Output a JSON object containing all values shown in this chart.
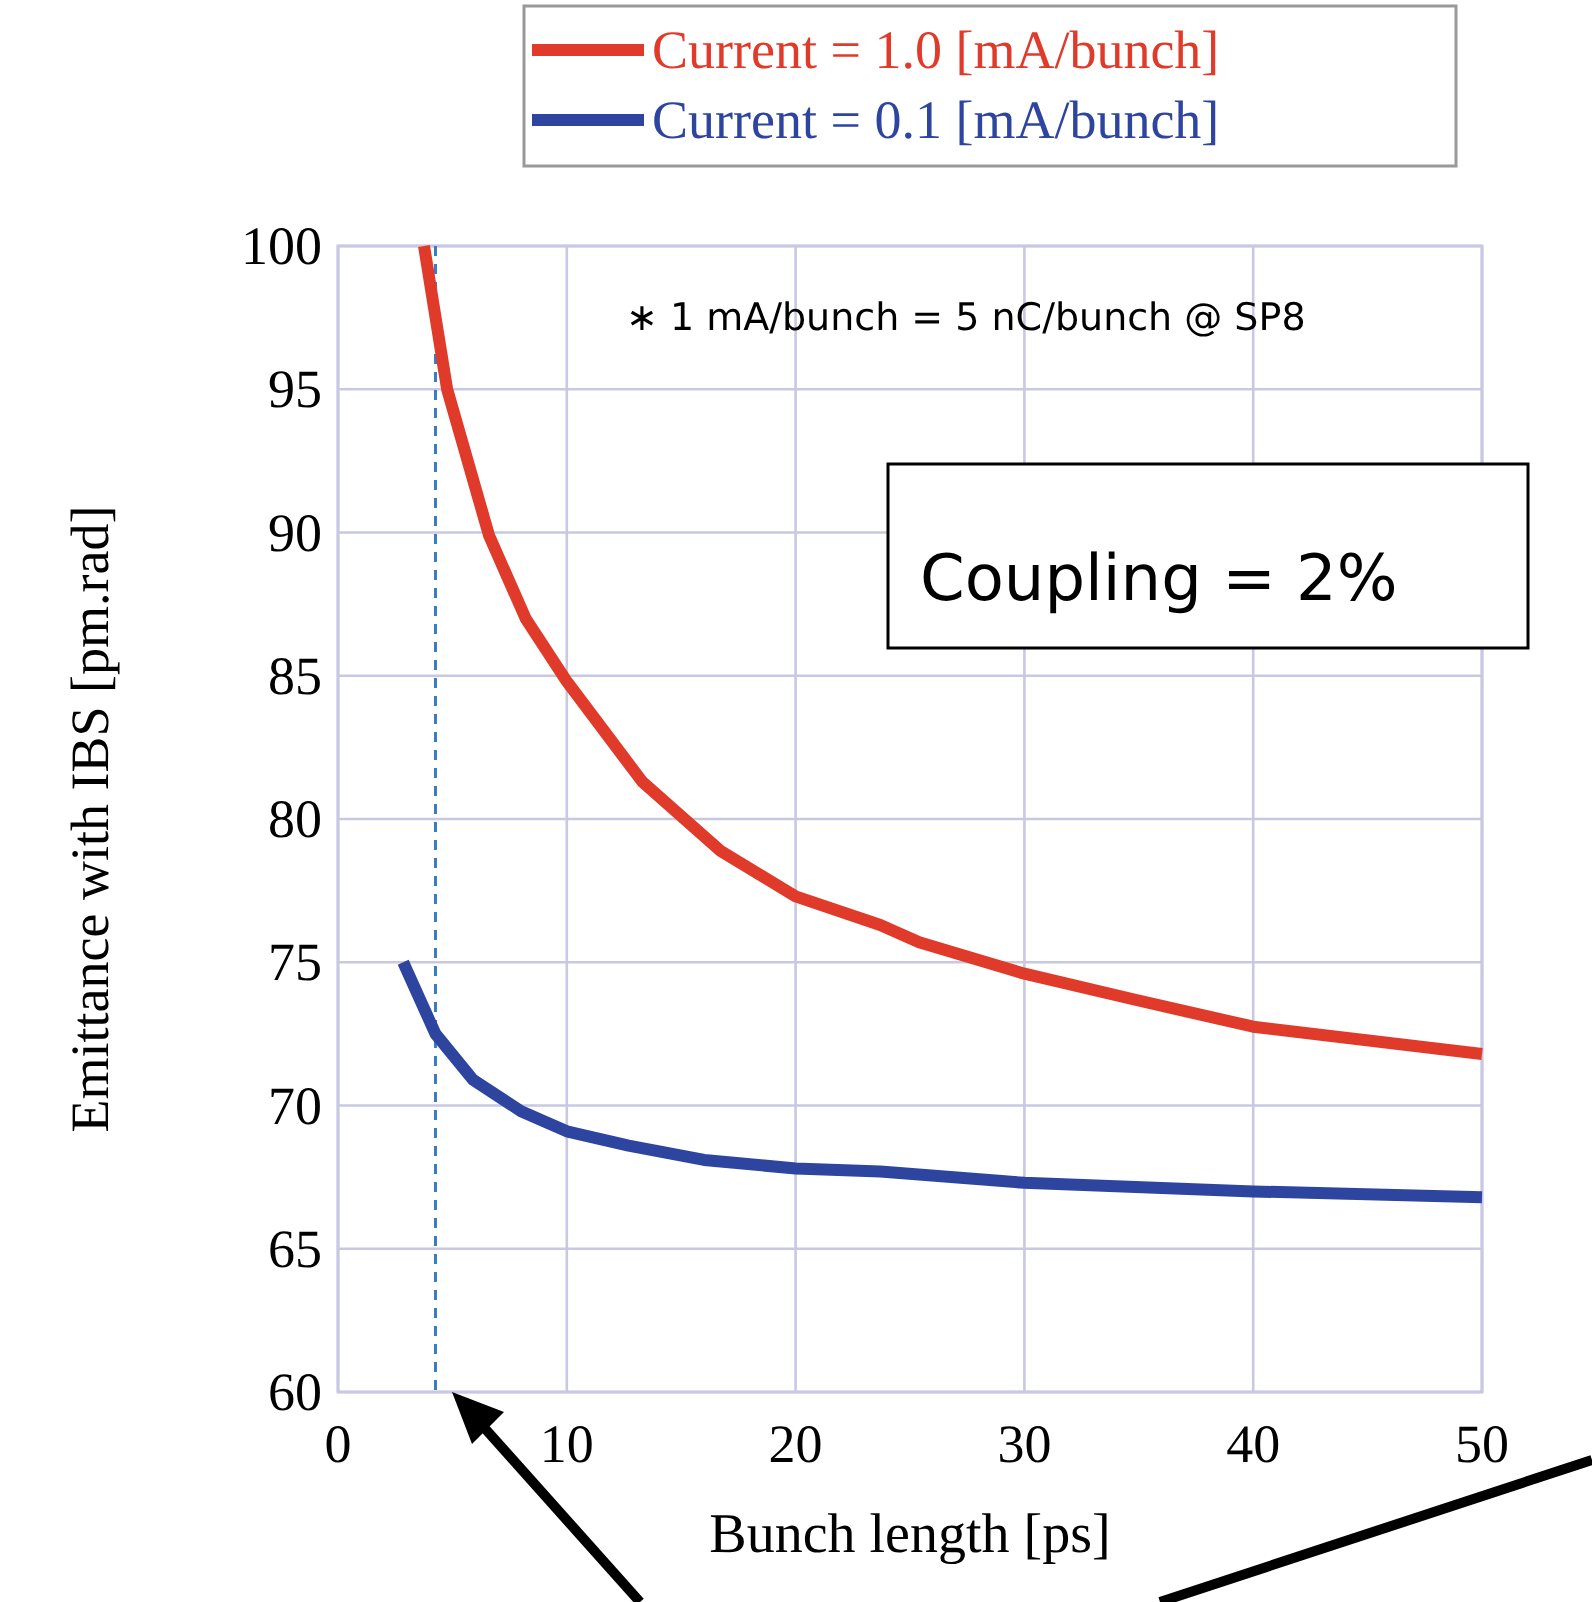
{
  "chart_data": {
    "type": "line",
    "xlabel": "Bunch length [ps]",
    "ylabel": "Emittance with IBS [pm.rad]",
    "xlim": [
      0,
      50
    ],
    "ylim": [
      60,
      100
    ],
    "xticks": [
      0,
      10,
      20,
      30,
      40,
      50
    ],
    "yticks": [
      60,
      65,
      70,
      75,
      80,
      85,
      90,
      95,
      100
    ],
    "grid": true,
    "legend": "top right",
    "line_style": "solid",
    "marker": "none",
    "series": [
      {
        "name": "Current = 1.0 [mA/bunch]",
        "color": "#e03a2a",
        "x": [
          3.76,
          4.77,
          6.6,
          8.2,
          10,
          13.3,
          16.7,
          20,
          23.7,
          25.4,
          30,
          34.8,
          40,
          50
        ],
        "values": [
          100,
          95,
          89.9,
          87,
          84.8,
          81.3,
          78.9,
          77.3,
          76.3,
          75.7,
          74.6,
          73.7,
          72.75,
          71.8
        ]
      },
      {
        "name": "Current = 0.1 [mA/bunch]",
        "color": "#2e45a0",
        "x": [
          2.85,
          4.26,
          5.9,
          8,
          10,
          12.7,
          16,
          20,
          23.7,
          30,
          40,
          50
        ],
        "values": [
          75,
          72.5,
          70.9,
          69.8,
          69.1,
          68.6,
          68.1,
          67.8,
          67.7,
          67.3,
          67,
          66.8
        ]
      }
    ],
    "ref_lines": [
      {
        "axis": "x",
        "value": 4.26,
        "color": "#3a7cc0",
        "line_style": "dashed"
      }
    ],
    "annotations": [
      "∗ 1 mA/bunch = 5 nC/bunch @ SP8",
      "Coupling = 2%"
    ]
  }
}
